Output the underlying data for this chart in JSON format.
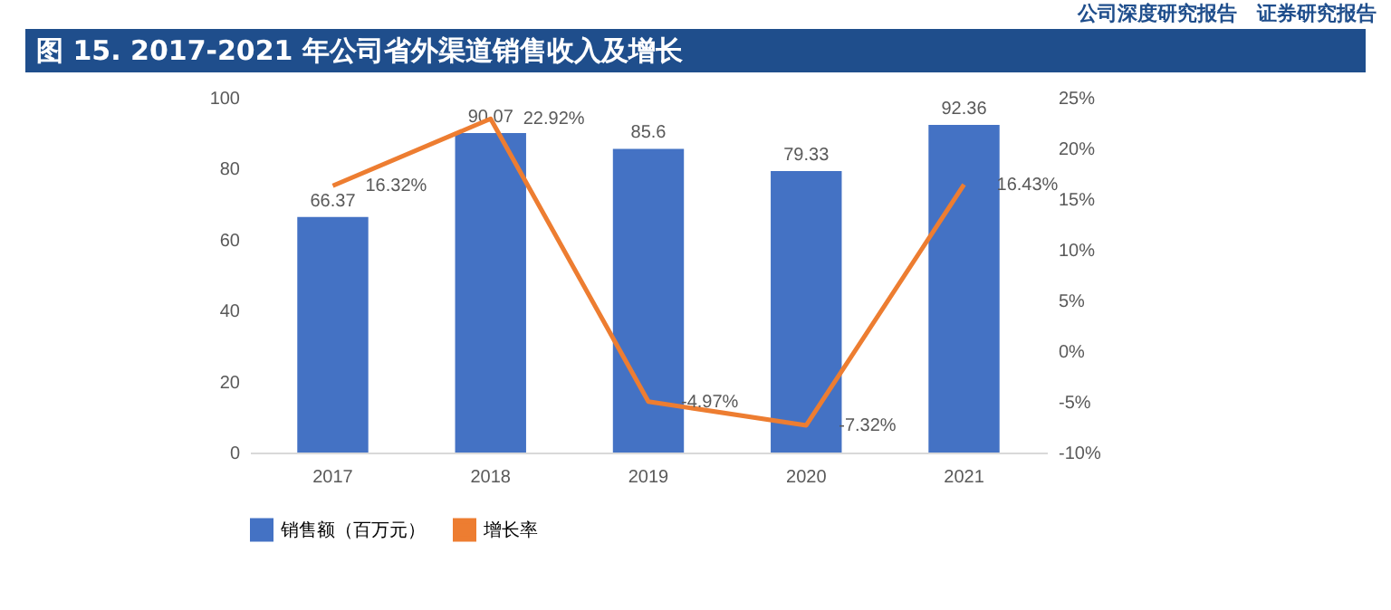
{
  "chart_data": {
    "type": "bar",
    "title": "图 15. 2017-2021 年公司省外渠道销售收入及增长",
    "annotations": [
      "公司深度研究报告　证券研究报告"
    ],
    "categories": [
      "2017",
      "2018",
      "2019",
      "2020",
      "2021"
    ],
    "series": [
      {
        "name": "销售额（百万元）",
        "color": "#4472c4",
        "values": [
          66.37,
          90.07,
          85.6,
          79.33,
          92.36
        ],
        "value_labels": [
          "66.37",
          "90.07",
          "85.6",
          "79.33",
          "92.36"
        ]
      },
      {
        "name": "增长率",
        "type": "line",
        "axis": "y2",
        "color": "#ed7d31",
        "values": [
          16.32,
          22.92,
          -4.97,
          -7.32,
          16.43
        ],
        "value_labels": [
          "16.32%",
          "22.92%",
          "-4.97%",
          "-7.32%",
          "16.43%"
        ]
      }
    ],
    "ylim": [
      0,
      100
    ],
    "yticks": [
      0,
      20,
      40,
      60,
      80,
      100
    ],
    "y2lim": [
      -10,
      25
    ],
    "y2ticks": [
      {
        "value": -10,
        "label": "-10%"
      },
      {
        "value": -5,
        "label": "-5%"
      },
      {
        "value": 0,
        "label": "0%"
      },
      {
        "value": 5,
        "label": "5%"
      },
      {
        "value": 10,
        "label": "10%"
      },
      {
        "value": 15,
        "label": "15%"
      },
      {
        "value": 20,
        "label": "20%"
      },
      {
        "value": 25,
        "label": "25%"
      }
    ],
    "grid": false,
    "legend": "bottom",
    "marker": "none"
  }
}
